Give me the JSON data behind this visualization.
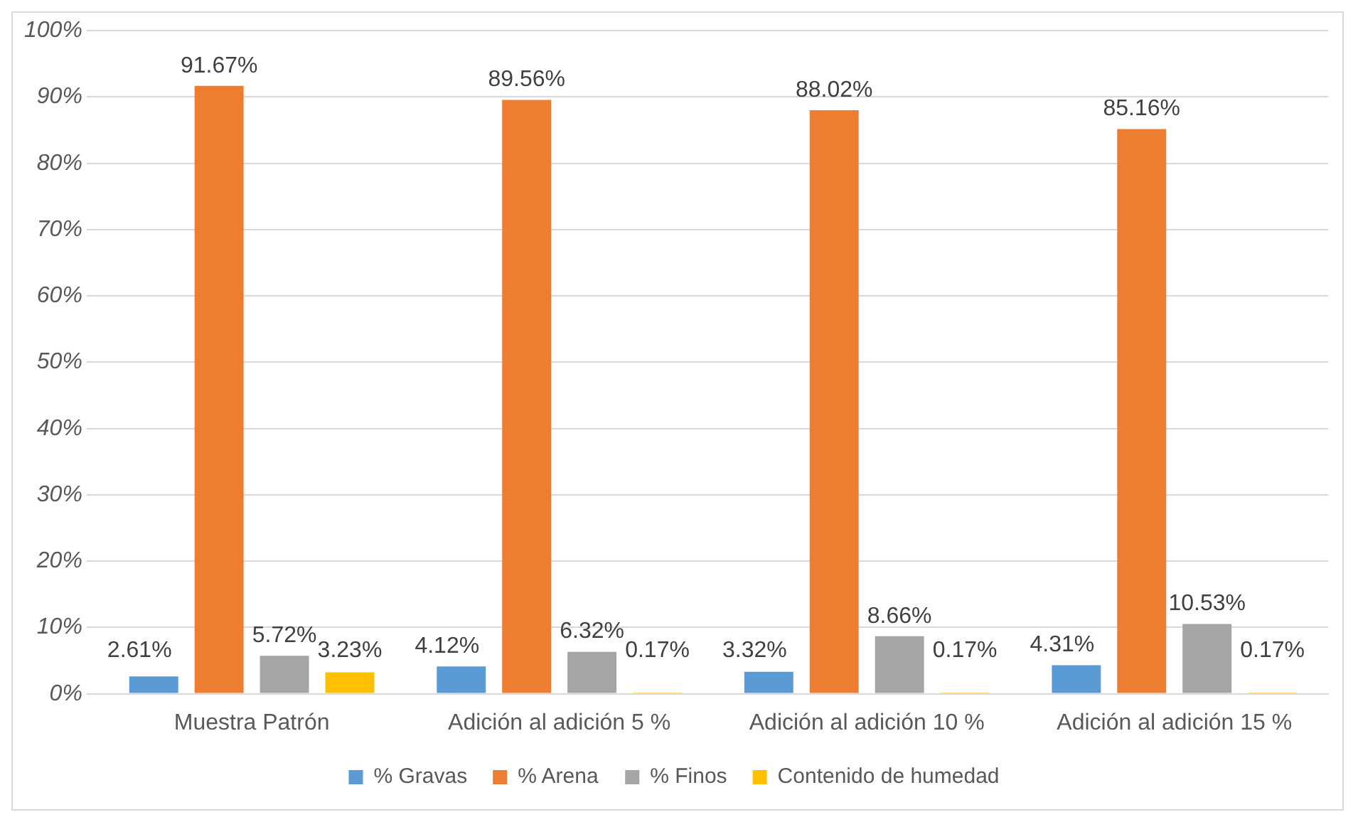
{
  "chart_data": {
    "type": "bar",
    "categories": [
      "Muestra Patrón",
      "Adición al adición 5 %",
      "Adición al adición 10 %",
      "Adición al adición 15 %"
    ],
    "series": [
      {
        "name": "% Gravas",
        "color": "#5b9bd5",
        "values": [
          2.61,
          4.12,
          3.32,
          4.31
        ],
        "value_labels": [
          "2.61%",
          "4.12%",
          "3.32%",
          "4.31%"
        ]
      },
      {
        "name": "% Arena",
        "color": "#ed7d31",
        "values": [
          91.67,
          89.56,
          88.02,
          85.16
        ],
        "value_labels": [
          "91.67%",
          "89.56%",
          "88.02%",
          "85.16%"
        ]
      },
      {
        "name": "% Finos",
        "color": "#a5a5a5",
        "values": [
          5.72,
          6.32,
          8.66,
          10.53
        ],
        "value_labels": [
          "5.72%",
          "6.32%",
          "8.66%",
          "10.53%"
        ]
      },
      {
        "name": "Contenido de humedad",
        "color": "#ffc000",
        "values": [
          3.23,
          0.17,
          0.17,
          0.17
        ],
        "value_labels": [
          "3.23%",
          "0.17%",
          "0.17%",
          "0.17%"
        ]
      }
    ],
    "ylim": [
      0,
      100
    ],
    "yticks": [
      {
        "value": 0,
        "label": "0%"
      },
      {
        "value": 10,
        "label": "10%"
      },
      {
        "value": 20,
        "label": "20%"
      },
      {
        "value": 30,
        "label": "30%"
      },
      {
        "value": 40,
        "label": "40%"
      },
      {
        "value": 50,
        "label": "50%"
      },
      {
        "value": 60,
        "label": "60%"
      },
      {
        "value": 70,
        "label": "70%"
      },
      {
        "value": 80,
        "label": "80%"
      },
      {
        "value": 90,
        "label": "90%"
      },
      {
        "value": 100,
        "label": "100%"
      }
    ],
    "grid": "y",
    "legend": "bottom"
  }
}
